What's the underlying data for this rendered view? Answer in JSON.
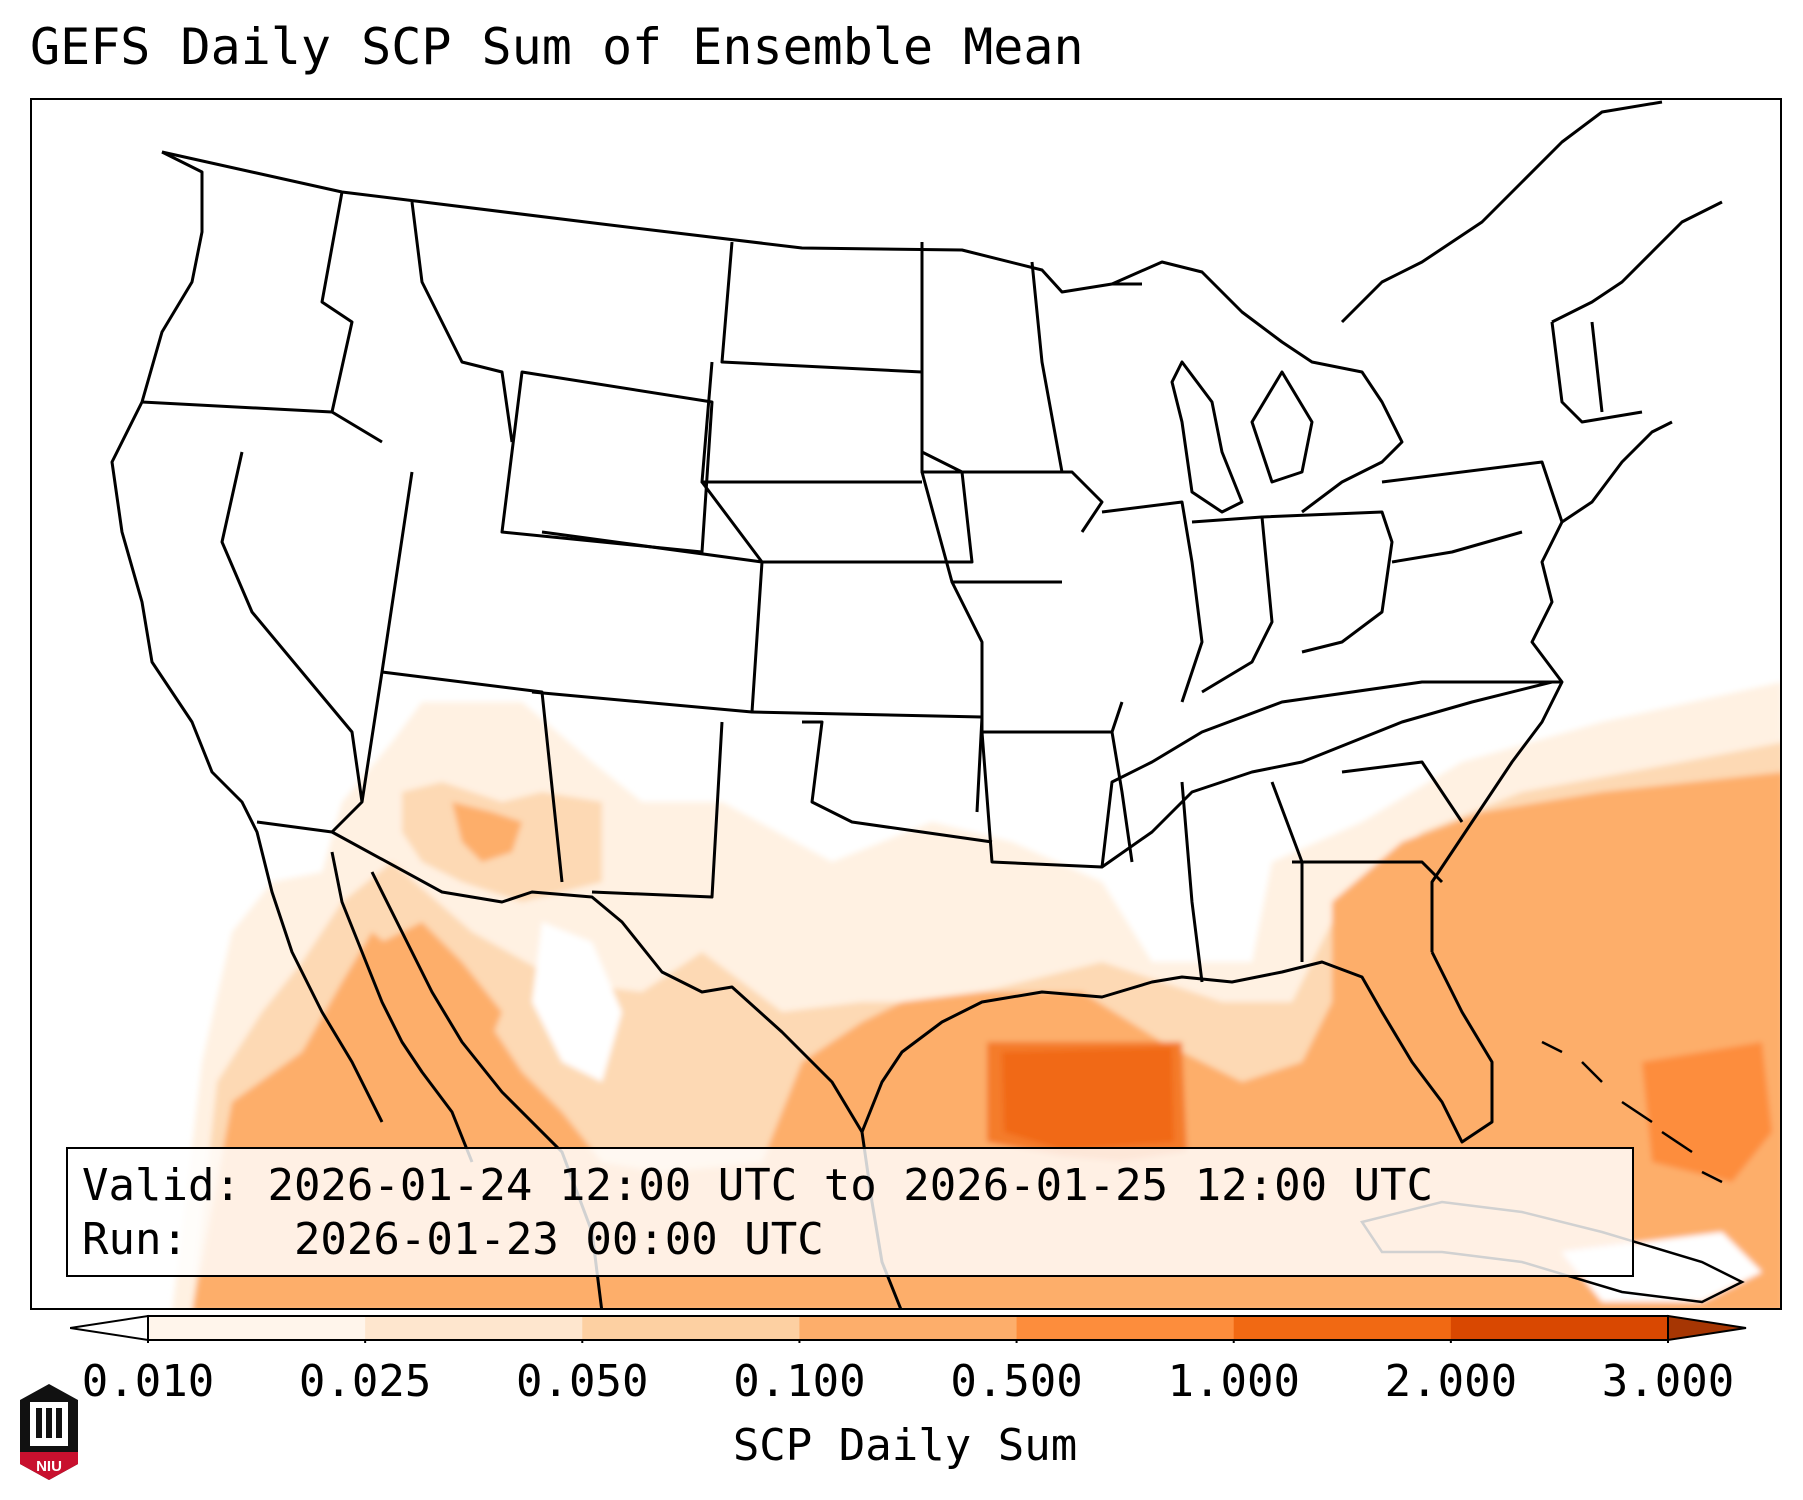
{
  "title": "GEFS Daily SCP Sum of Ensemble Mean",
  "info": {
    "valid_label": "Valid:",
    "valid_value": "2026-01-24 12:00 UTC to 2026-01-25 12:00 UTC",
    "run_label": "Run:",
    "run_value": "2026-01-23 00:00 UTC"
  },
  "colorbar": {
    "label": "SCP Daily Sum",
    "ticks": [
      "0.010",
      "0.025",
      "0.050",
      "0.100",
      "0.500",
      "1.000",
      "2.000",
      "3.000"
    ],
    "colors": [
      "#fff5eb",
      "#fee6ce",
      "#fdd0a2",
      "#fdae6b",
      "#fd8d3c",
      "#f16913",
      "#d94801",
      "#a63603"
    ],
    "extend": "both"
  },
  "logo": {
    "text": "NIU",
    "color": "#c8102e"
  }
}
